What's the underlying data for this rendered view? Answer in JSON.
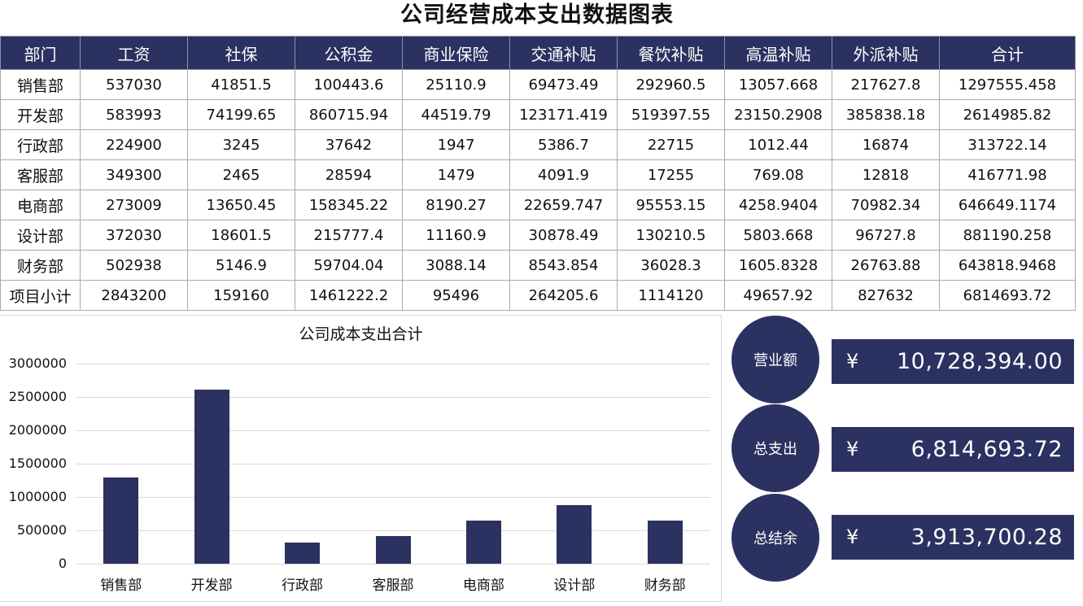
{
  "page": {
    "title": "公司经营成本支出数据图表"
  },
  "table": {
    "headers": [
      "部门",
      "工资",
      "社保",
      "公积金",
      "商业保险",
      "交通补贴",
      "餐饮补贴",
      "高温补贴",
      "外派补贴",
      "合计"
    ],
    "rows": [
      [
        "销售部",
        "537030",
        "41851.5",
        "100443.6",
        "25110.9",
        "69473.49",
        "292960.5",
        "13057.668",
        "217627.8",
        "1297555.458"
      ],
      [
        "开发部",
        "583993",
        "74199.65",
        "860715.94",
        "44519.79",
        "123171.419",
        "519397.55",
        "23150.2908",
        "385838.18",
        "2614985.82"
      ],
      [
        "行政部",
        "224900",
        "3245",
        "37642",
        "1947",
        "5386.7",
        "22715",
        "1012.44",
        "16874",
        "313722.14"
      ],
      [
        "客服部",
        "349300",
        "2465",
        "28594",
        "1479",
        "4091.9",
        "17255",
        "769.08",
        "12818",
        "416771.98"
      ],
      [
        "电商部",
        "273009",
        "13650.45",
        "158345.22",
        "8190.27",
        "22659.747",
        "95553.15",
        "4258.9404",
        "70982.34",
        "646649.1174"
      ],
      [
        "设计部",
        "372030",
        "18601.5",
        "215777.4",
        "11160.9",
        "30878.49",
        "130210.5",
        "5803.668",
        "96727.8",
        "881190.258"
      ],
      [
        "财务部",
        "502938",
        "5146.9",
        "59704.04",
        "3088.14",
        "8543.854",
        "36028.3",
        "1605.8328",
        "26763.88",
        "643818.9468"
      ],
      [
        "项目小计",
        "2843200",
        "159160",
        "1461222.2",
        "95496",
        "264205.6",
        "1114120",
        "49657.92",
        "827632",
        "6814693.72"
      ]
    ]
  },
  "kpis": [
    {
      "label": "营业额",
      "currency": "¥",
      "value": "10,728,394.00"
    },
    {
      "label": "总支出",
      "currency": "¥",
      "value": "6,814,693.72"
    },
    {
      "label": "总结余",
      "currency": "¥",
      "value": "3,913,700.28"
    }
  ],
  "colors": {
    "primary": "#2b3160",
    "grid": "#d9d9d9",
    "border": "#a9a9a9"
  },
  "chart_data": {
    "type": "bar",
    "title": "公司成本支出合计",
    "xlabel": "",
    "ylabel": "",
    "categories": [
      "销售部",
      "开发部",
      "行政部",
      "客服部",
      "电商部",
      "设计部",
      "财务部"
    ],
    "values": [
      1297555.458,
      2614985.82,
      313722.14,
      416771.98,
      646649.1174,
      881190.258,
      643818.9468
    ],
    "ylim": [
      0,
      3000000
    ],
    "yticks": [
      "0",
      "500000",
      "1000000",
      "1500000",
      "2000000",
      "2500000",
      "3000000"
    ],
    "grid": true,
    "legend": "none",
    "bar_color": "#2b3160"
  }
}
